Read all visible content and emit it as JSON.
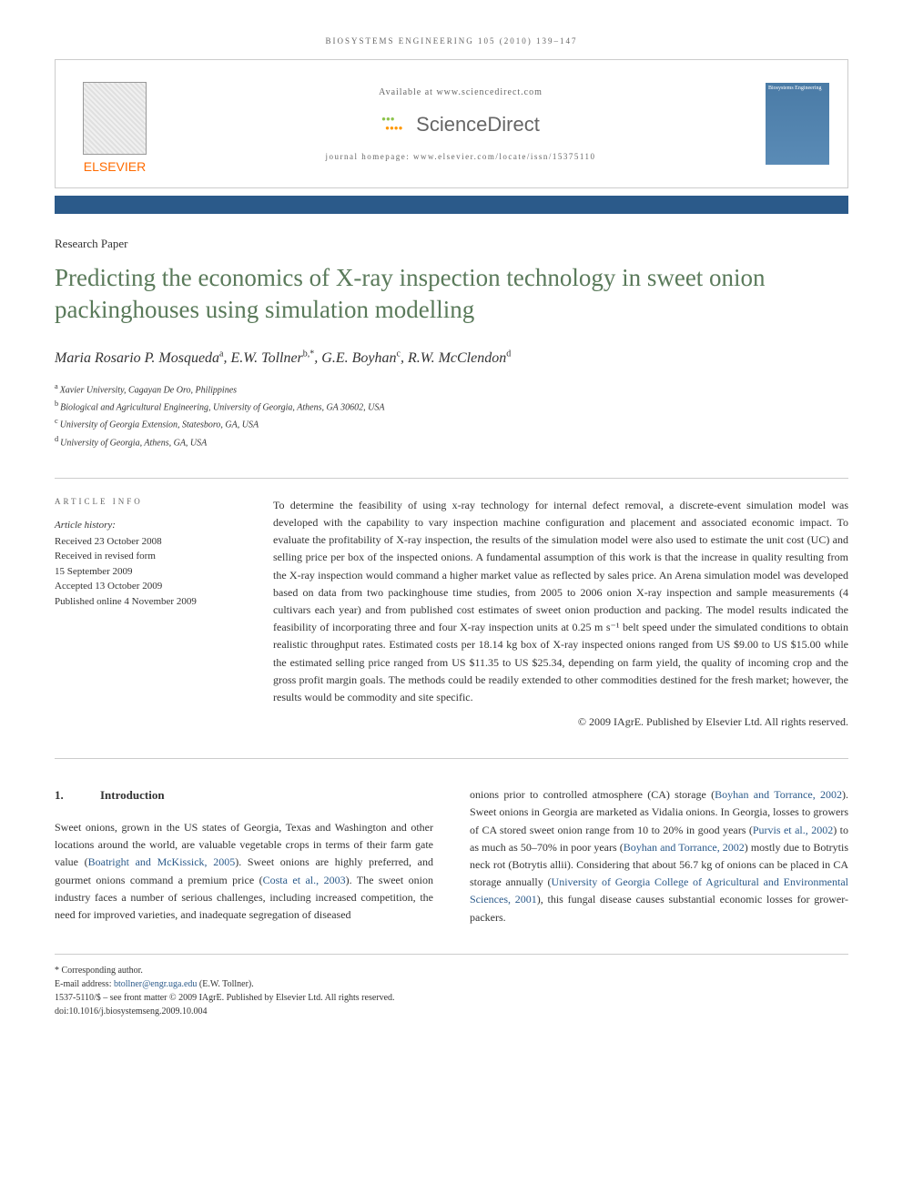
{
  "journal_header": "BIOSYSTEMS ENGINEERING 105 (2010) 139–147",
  "top_box": {
    "publisher": "ELSEVIER",
    "available": "Available at www.sciencedirect.com",
    "sd_brand": "ScienceDirect",
    "homepage": "journal homepage: www.elsevier.com/locate/issn/15375110",
    "cover_text": "Biosystems Engineering"
  },
  "paper_type": "Research Paper",
  "title": "Predicting the economics of X-ray inspection technology in sweet onion packinghouses using simulation modelling",
  "authors_html": "Maria Rosario P. Mosqueda",
  "authors": [
    {
      "name": "Maria Rosario P. Mosqueda",
      "sup": "a"
    },
    {
      "name": "E.W. Tollner",
      "sup": "b,*"
    },
    {
      "name": "G.E. Boyhan",
      "sup": "c"
    },
    {
      "name": "R.W. McClendon",
      "sup": "d"
    }
  ],
  "affiliations": [
    {
      "sup": "a",
      "text": "Xavier University, Cagayan De Oro, Philippines"
    },
    {
      "sup": "b",
      "text": "Biological and Agricultural Engineering, University of Georgia, Athens, GA 30602, USA"
    },
    {
      "sup": "c",
      "text": "University of Georgia Extension, Statesboro, GA, USA"
    },
    {
      "sup": "d",
      "text": "University of Georgia, Athens, GA, USA"
    }
  ],
  "article_info": {
    "heading": "ARTICLE INFO",
    "history_label": "Article history:",
    "items": [
      "Received 23 October 2008",
      "Received in revised form",
      "15 September 2009",
      "Accepted 13 October 2009",
      "Published online 4 November 2009"
    ]
  },
  "abstract": "To determine the feasibility of using x-ray technology for internal defect removal, a discrete-event simulation model was developed with the capability to vary inspection machine configuration and placement and associated economic impact. To evaluate the profitability of X-ray inspection, the results of the simulation model were also used to estimate the unit cost (UC) and selling price per box of the inspected onions. A fundamental assumption of this work is that the increase in quality resulting from the X-ray inspection would command a higher market value as reflected by sales price. An Arena simulation model was developed based on data from two packinghouse time studies, from 2005 to 2006 onion X-ray inspection and sample measurements (4 cultivars each year) and from published cost estimates of sweet onion production and packing. The model results indicated the feasibility of incorporating three and four X-ray inspection units at 0.25 m s⁻¹ belt speed under the simulated conditions to obtain realistic throughput rates. Estimated costs per 18.14 kg box of X-ray inspected onions ranged from US $9.00 to US $15.00 while the estimated selling price ranged from US $11.35 to US $25.34, depending on farm yield, the quality of incoming crop and the gross profit margin goals. The methods could be readily extended to other commodities destined for the fresh market; however, the results would be commodity and site specific.",
  "copyright": "© 2009 IAgrE. Published by Elsevier Ltd. All rights reserved.",
  "section1": {
    "num": "1.",
    "heading": "Introduction"
  },
  "body": {
    "col1_p1_a": "Sweet onions, grown in the US states of Georgia, Texas and Washington and other locations around the world, are valuable vegetable crops in terms of their farm gate value (",
    "col1_ref1": "Boatright and McKissick, 2005",
    "col1_p1_b": "). Sweet onions are highly preferred, and gourmet onions command a premium price (",
    "col1_ref2": "Costa et al., 2003",
    "col1_p1_c": "). The sweet onion industry faces a number of serious challenges, including increased competition, the need for improved varieties, and inadequate segregation of diseased",
    "col2_p1_a": "onions prior to controlled atmosphere (CA) storage (",
    "col2_ref1": "Boyhan and Torrance, 2002",
    "col2_p1_b": "). Sweet onions in Georgia are marketed as Vidalia onions. In Georgia, losses to growers of CA stored sweet onion range from 10 to 20% in good years (",
    "col2_ref2": "Purvis et al., 2002",
    "col2_p1_c": ") to as much as 50–70% in poor years (",
    "col2_ref3": "Boyhan and Torrance, 2002",
    "col2_p1_d": ") mostly due to Botrytis neck rot (Botrytis allii). Considering that about 56.7 kg of onions can be placed in CA storage annually (",
    "col2_ref4": "University of Georgia College of Agricultural and Environmental Sciences, 2001",
    "col2_p1_e": "), this fungal disease causes substantial economic losses for grower-packers."
  },
  "footer": {
    "corresponding": "* Corresponding author.",
    "email_label": "E-mail address: ",
    "email": "btollner@engr.uga.edu",
    "email_author": " (E.W. Tollner).",
    "issn": "1537-5110/$ – see front matter © 2009 IAgrE. Published by Elsevier Ltd. All rights reserved.",
    "doi": "doi:10.1016/j.biosystemseng.2009.10.004"
  },
  "colors": {
    "title_color": "#5a7a5a",
    "blue_bar": "#2b5a8a",
    "link_color": "#2b5a8a",
    "publisher_orange": "#ff6b00"
  }
}
